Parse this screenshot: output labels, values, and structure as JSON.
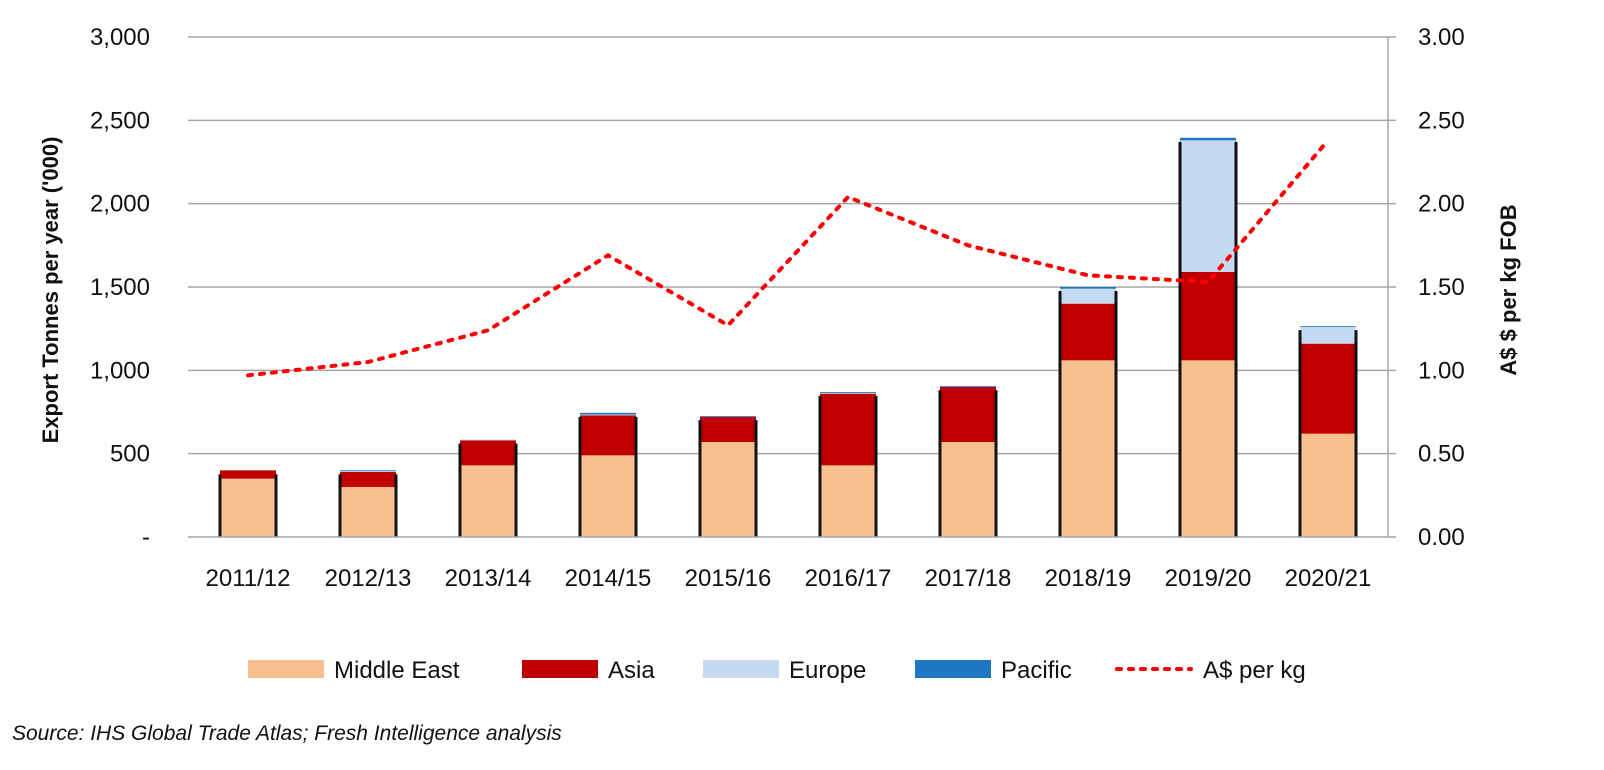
{
  "chart_data": {
    "type": "bar",
    "stacked": true,
    "categories": [
      "2011/12",
      "2012/13",
      "2013/14",
      "2014/15",
      "2015/16",
      "2016/17",
      "2017/18",
      "2018/19",
      "2019/20",
      "2020/21"
    ],
    "series": [
      {
        "name": "Middle East",
        "color": "#F8C08F",
        "values": [
          350,
          300,
          430,
          490,
          570,
          430,
          570,
          1060,
          1060,
          620
        ]
      },
      {
        "name": "Asia",
        "color": "#C00000",
        "values": [
          50,
          90,
          150,
          240,
          150,
          430,
          330,
          340,
          530,
          540
        ]
      },
      {
        "name": "Europe",
        "color": "#C5D9F1",
        "values": [
          0,
          5,
          5,
          5,
          0,
          5,
          0,
          90,
          790,
          100
        ]
      },
      {
        "name": "Pacific",
        "color": "#1F77C4",
        "values": [
          0,
          5,
          0,
          10,
          5,
          5,
          5,
          10,
          15,
          5
        ]
      }
    ],
    "line_series": {
      "name": "A$ per kg",
      "color": "#FF0000",
      "style": "dotted",
      "axis": "right",
      "values": [
        0.97,
        1.05,
        1.24,
        1.69,
        1.27,
        2.04,
        1.75,
        1.57,
        1.53,
        2.38
      ]
    },
    "ylabel": "Export Tonnes per year ('000)",
    "ylabel_right": "A$ $ per kg FOB",
    "ylim": [
      0,
      3000
    ],
    "ylim_right": [
      0,
      3.0
    ],
    "y_ticks": [
      "-",
      "500",
      "1,000",
      "1,500",
      "2,000",
      "2,500",
      "3,000"
    ],
    "y_ticks_right": [
      "0.00",
      "0.50",
      "1.00",
      "1.50",
      "2.00",
      "2.50",
      "3.00"
    ],
    "grid": true,
    "legend_position": "bottom",
    "legend": [
      "Middle East",
      "Asia",
      "Europe",
      "Pacific",
      "A$ per kg"
    ]
  },
  "source": "Source: IHS Global Trade Atlas; Fresh Intelligence analysis"
}
